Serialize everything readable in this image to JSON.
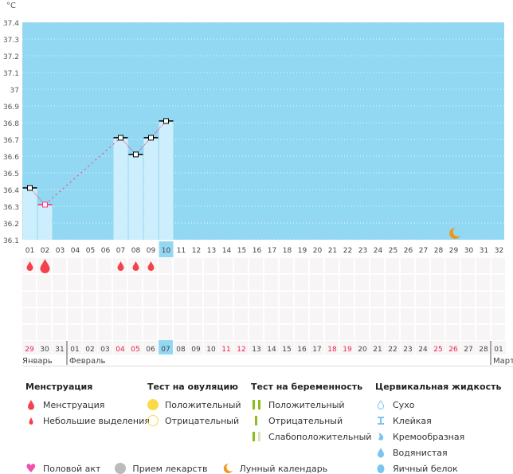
{
  "chart_data": {
    "type": "bar",
    "unit": "°C",
    "ylim": [
      36.1,
      37.4
    ],
    "yticks": [
      "36.1",
      "36.2",
      "36.3",
      "36.4",
      "36.5",
      "36.6",
      "36.7",
      "36.8",
      "36.9",
      "37",
      "37.1",
      "37.2",
      "37.3",
      "37.4"
    ],
    "cycle_days": [
      "01",
      "02",
      "03",
      "04",
      "05",
      "06",
      "07",
      "08",
      "09",
      "10",
      "11",
      "12",
      "13",
      "14",
      "15",
      "16",
      "17",
      "18",
      "19",
      "20",
      "21",
      "22",
      "23",
      "24",
      "25",
      "26",
      "27",
      "28",
      "29",
      "30",
      "31",
      "32"
    ],
    "current_cycle_day": 10,
    "temperatures": [
      {
        "day": 1,
        "value": 36.41
      },
      {
        "day": 2,
        "value": 36.31,
        "highlight": true
      },
      {
        "day": 7,
        "value": 36.71
      },
      {
        "day": 8,
        "value": 36.61
      },
      {
        "day": 9,
        "value": 36.71
      },
      {
        "day": 10,
        "value": 36.81
      }
    ],
    "menstruation": [
      {
        "day": 1,
        "type": "small"
      },
      {
        "day": 2,
        "type": "heavy"
      },
      {
        "day": 7,
        "type": "small"
      },
      {
        "day": 8,
        "type": "small"
      },
      {
        "day": 9,
        "type": "small"
      }
    ],
    "moon_day": 29,
    "dates": [
      "29",
      "30",
      "31",
      "01",
      "02",
      "03",
      "04",
      "05",
      "06",
      "07",
      "08",
      "09",
      "10",
      "11",
      "12",
      "13",
      "14",
      "15",
      "16",
      "17",
      "18",
      "19",
      "20",
      "21",
      "22",
      "23",
      "24",
      "25",
      "26",
      "27",
      "28",
      "01"
    ],
    "weekend_dates_idx": [
      0,
      6,
      7,
      13,
      14,
      20,
      21,
      27,
      28
    ],
    "today_idx": 9,
    "months": [
      {
        "label": "Январь",
        "start_idx": 0
      },
      {
        "label": "Февраль",
        "start_idx": 3
      },
      {
        "label": "Март",
        "start_idx": 31
      }
    ],
    "colors": {
      "bg": "#92d8f2",
      "bar": "#cdeefc",
      "line": "#ff3377",
      "drop": "#f4424c"
    }
  },
  "legend": {
    "menstruation": {
      "title": "Менструация",
      "items": [
        "Менструация",
        "Небольшие выделения"
      ]
    },
    "ovulation": {
      "title": "Тест на овуляцию",
      "items": [
        "Положительный",
        "Отрицательный"
      ]
    },
    "pregnancy": {
      "title": "Тест на беременность",
      "items": [
        "Положительный",
        "Отрицательный",
        "Слабоположительный"
      ]
    },
    "cervical": {
      "title": "Цервикальная жидкость",
      "items": [
        "Сухо",
        "Клейкая",
        "Кремообразная",
        "Водянистая",
        "Яичный белок"
      ]
    },
    "other": [
      "Половой акт",
      "Прием лекарств",
      "Лунный календарь"
    ]
  }
}
